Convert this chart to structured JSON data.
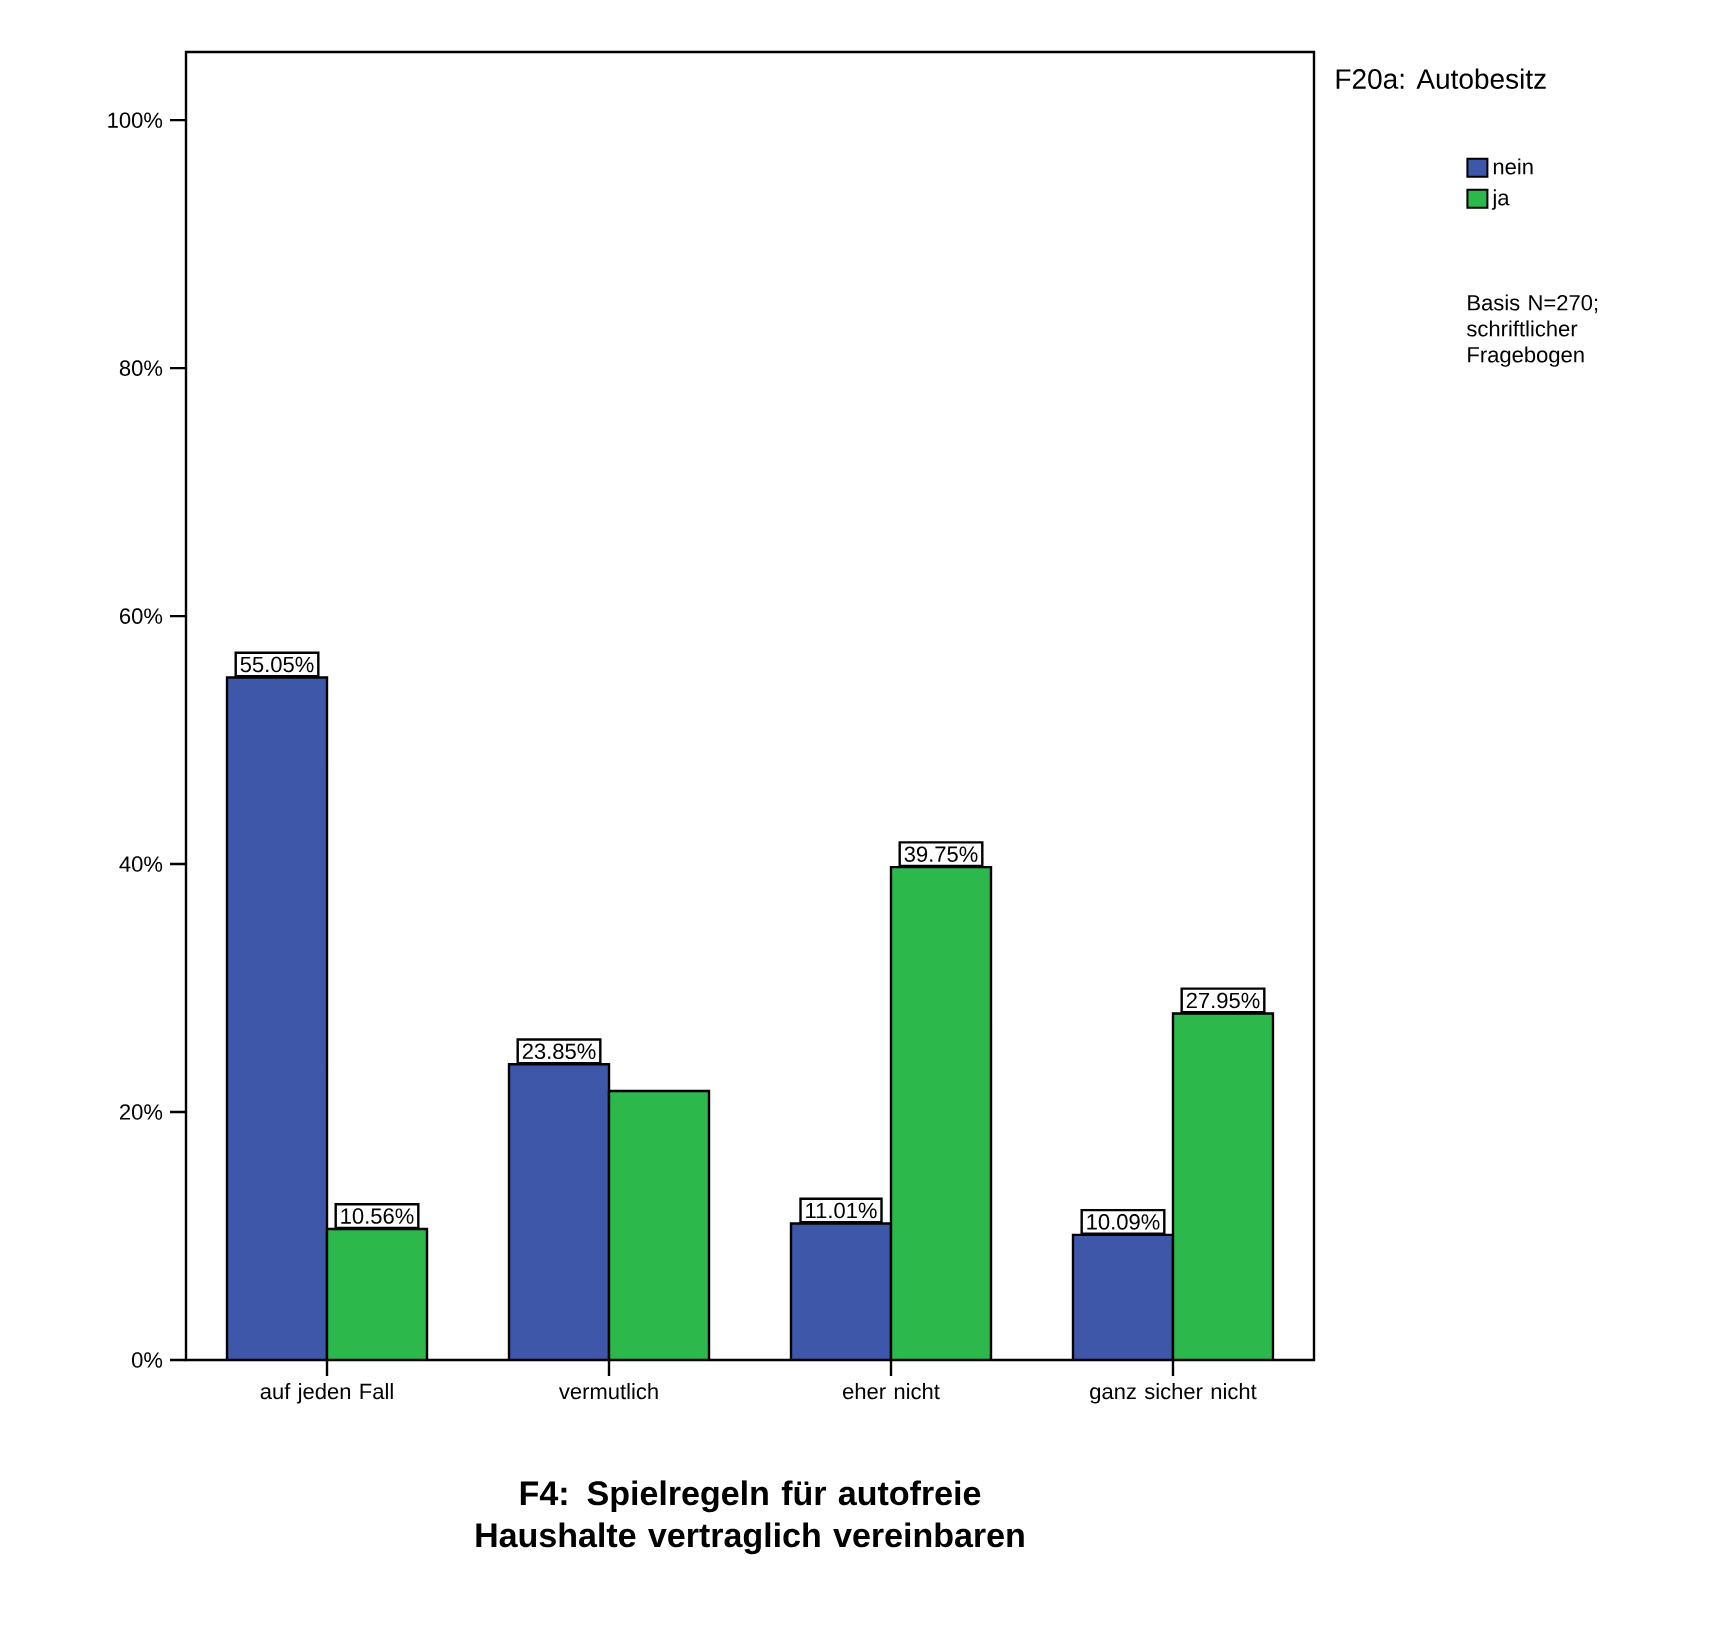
{
  "chart_data": {
    "type": "bar",
    "title": "F4: Spielregeln für autofreie Haushalte vertraglich vereinbaren",
    "categories": [
      "auf jeden Fall",
      "vermutlich",
      "eher nicht",
      "ganz sicher nicht"
    ],
    "series": [
      {
        "name": "nein",
        "color": "#3f57a8",
        "values": [
          55.05,
          23.85,
          11.01,
          10.09
        ],
        "value_labels": [
          "55.05%",
          "23.85%",
          "11.01%",
          "10.09%"
        ]
      },
      {
        "name": "ja",
        "color": "#2db84b",
        "values": [
          10.56,
          21.7,
          39.75,
          27.95
        ],
        "value_labels": [
          "10.56%",
          null,
          "39.75%",
          "27.95%"
        ]
      }
    ],
    "legend_title": "F20a: Autobesitz",
    "legend": "top right",
    "annotations": [
      "Basis N=270; schriftlicher Fragebogen"
    ],
    "ylim": [
      0,
      105.5
    ],
    "yticks": [
      {
        "value": 0,
        "label": "0%"
      },
      {
        "value": 20,
        "label": "20%"
      },
      {
        "value": 40,
        "label": "40%"
      },
      {
        "value": 60,
        "label": "60%"
      },
      {
        "value": 80,
        "label": "80%"
      },
      {
        "value": 100,
        "label": "100%"
      }
    ]
  }
}
